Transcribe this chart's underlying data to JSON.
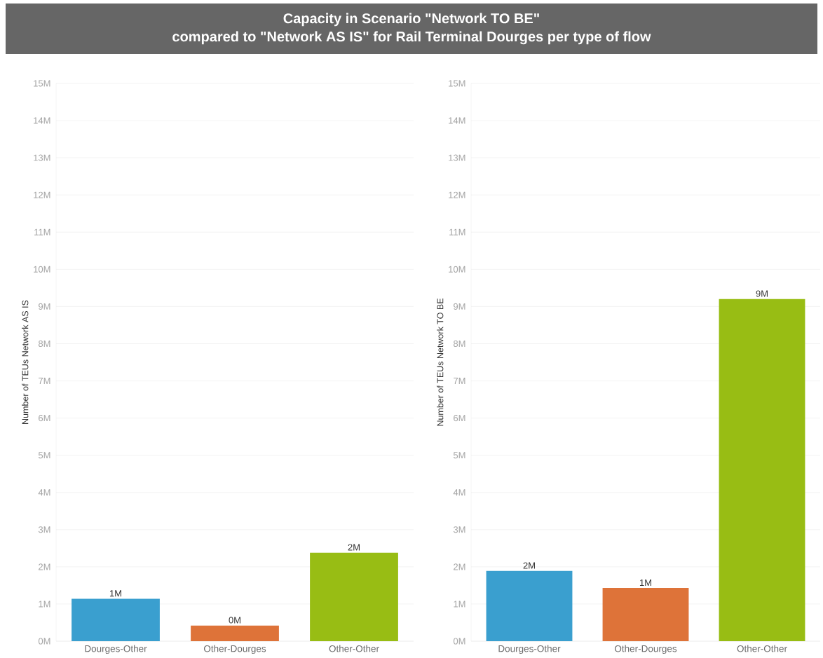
{
  "chart_data": [
    {
      "type": "bar",
      "title": "Capacity in Scenario \"Network TO BE\"",
      "subtitle": "compared to \"Network AS IS\" for Rail Terminal Dourges per type of flow",
      "ylabel": "Number of TEUs Network AS IS",
      "categories": [
        "Dourges-Other",
        "Other-Dourges",
        "Other-Other"
      ],
      "values": [
        1.14,
        0.42,
        2.38
      ],
      "colors": [
        "#3a9fcf",
        "#de7339",
        "#98bd14"
      ],
      "value_labels": [
        "1M",
        "0M",
        "2M"
      ],
      "ylim": [
        0,
        15
      ],
      "yticks": [
        {
          "value": 0,
          "label": "0M"
        },
        {
          "value": 1,
          "label": "1M"
        },
        {
          "value": 2,
          "label": "2M"
        },
        {
          "value": 3,
          "label": "3M"
        },
        {
          "value": 4,
          "label": "4M"
        },
        {
          "value": 5,
          "label": "5M"
        },
        {
          "value": 6,
          "label": "6M"
        },
        {
          "value": 7,
          "label": "7M"
        },
        {
          "value": 8,
          "label": "8M"
        },
        {
          "value": 9,
          "label": "9M"
        },
        {
          "value": 10,
          "label": "10M"
        },
        {
          "value": 11,
          "label": "11M"
        },
        {
          "value": 12,
          "label": "12M"
        },
        {
          "value": 13,
          "label": "13M"
        },
        {
          "value": 14,
          "label": "14M"
        },
        {
          "value": 15,
          "label": "15M"
        }
      ],
      "grid": "y"
    },
    {
      "type": "bar",
      "ylabel": "Number of TEUs Network TO BE",
      "categories": [
        "Dourges-Other",
        "Other-Dourges",
        "Other-Other"
      ],
      "values": [
        1.89,
        1.43,
        9.2
      ],
      "colors": [
        "#3a9fcf",
        "#de7339",
        "#98bd14"
      ],
      "value_labels": [
        "2M",
        "1M",
        "9M"
      ],
      "ylim": [
        0,
        15
      ],
      "yticks": [
        {
          "value": 0,
          "label": "0M"
        },
        {
          "value": 1,
          "label": "1M"
        },
        {
          "value": 2,
          "label": "2M"
        },
        {
          "value": 3,
          "label": "3M"
        },
        {
          "value": 4,
          "label": "4M"
        },
        {
          "value": 5,
          "label": "5M"
        },
        {
          "value": 6,
          "label": "6M"
        },
        {
          "value": 7,
          "label": "7M"
        },
        {
          "value": 8,
          "label": "8M"
        },
        {
          "value": 9,
          "label": "9M"
        },
        {
          "value": 10,
          "label": "10M"
        },
        {
          "value": 11,
          "label": "11M"
        },
        {
          "value": 12,
          "label": "12M"
        },
        {
          "value": 13,
          "label": "13M"
        },
        {
          "value": 14,
          "label": "14M"
        },
        {
          "value": 15,
          "label": "15M"
        }
      ],
      "grid": "y"
    }
  ]
}
